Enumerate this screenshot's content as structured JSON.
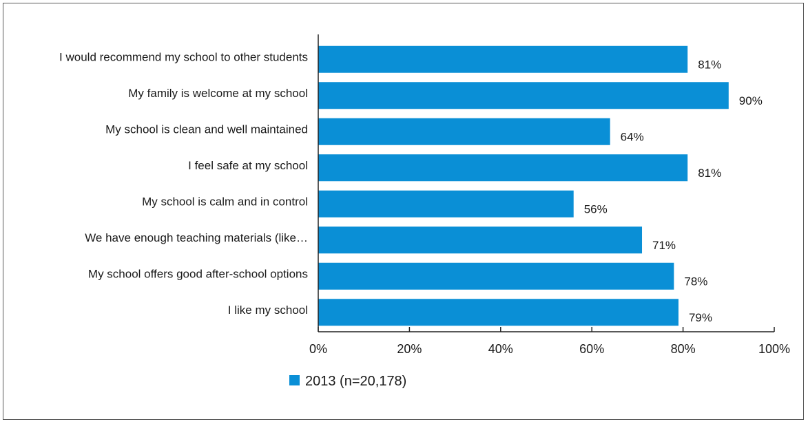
{
  "chart_data": {
    "type": "bar",
    "orientation": "horizontal",
    "categories": [
      "I would recommend my school to other students",
      "My family is welcome at my school",
      "My school is clean and well maintained",
      "I feel safe at my school",
      "My school is calm and in control",
      "We have enough teaching materials (like…",
      "My school offers good after-school options",
      "I like my school"
    ],
    "series": [
      {
        "name": "2013 (n=20,178)",
        "color": "#0a8fd6",
        "values": [
          81,
          90,
          64,
          81,
          56,
          71,
          78,
          79
        ],
        "value_labels": [
          "81%",
          "90%",
          "64%",
          "81%",
          "56%",
          "71%",
          "78%",
          "79%"
        ]
      }
    ],
    "xlim": [
      0,
      100
    ],
    "x_ticks": [
      0,
      20,
      40,
      60,
      80,
      100
    ],
    "x_tick_labels": [
      "0%",
      "20%",
      "40%",
      "60%",
      "80%",
      "100%"
    ],
    "grid": false,
    "legend_position": "bottom-left",
    "axis_color": "#222222"
  }
}
